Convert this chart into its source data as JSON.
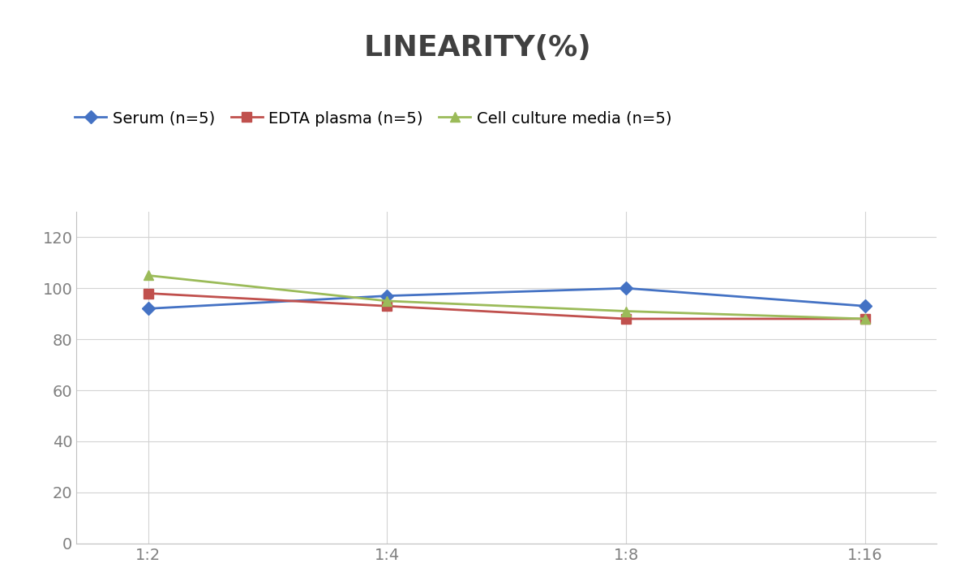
{
  "title": "LINEARITY(%)",
  "x_labels": [
    "1:2",
    "1:4",
    "1:8",
    "1:16"
  ],
  "x_positions": [
    0,
    1,
    2,
    3
  ],
  "series": [
    {
      "label": "Serum (n=5)",
      "values": [
        92,
        97,
        100,
        93
      ],
      "color": "#4472C4",
      "marker": "D",
      "linewidth": 2,
      "markersize": 8
    },
    {
      "label": "EDTA plasma (n=5)",
      "values": [
        98,
        93,
        88,
        88
      ],
      "color": "#C0504D",
      "marker": "s",
      "linewidth": 2,
      "markersize": 8
    },
    {
      "label": "Cell culture media (n=5)",
      "values": [
        105,
        95,
        91,
        88
      ],
      "color": "#9BBB59",
      "marker": "^",
      "linewidth": 2,
      "markersize": 8
    }
  ],
  "ylim": [
    0,
    130
  ],
  "yticks": [
    0,
    20,
    40,
    60,
    80,
    100,
    120
  ],
  "background_color": "#ffffff",
  "grid_color": "#d3d3d3",
  "title_fontsize": 26,
  "tick_fontsize": 14,
  "legend_fontsize": 14,
  "title_color": "#404040",
  "tick_color": "#808080"
}
